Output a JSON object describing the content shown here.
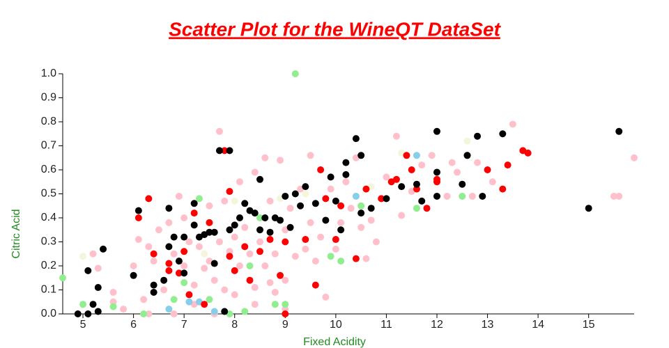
{
  "chart_data": {
    "type": "scatter",
    "title": "Scatter Plot for the WineQT DataSet",
    "x_label": "Fixed Acidity",
    "y_label": "Citric Acid",
    "xlim": [
      4.6,
      15.9
    ],
    "xticks": [
      5,
      6,
      7,
      8,
      9,
      10,
      11,
      12,
      13,
      14,
      15
    ],
    "ylim": [
      0,
      1
    ],
    "yticks": [
      {
        "value": 0,
        "label": "0.0"
      },
      0.1,
      0.2,
      0.3,
      0.4,
      0.5,
      0.6,
      0.7,
      0.8,
      0.9,
      {
        "value": 1,
        "label": "1.0"
      }
    ],
    "grid": false,
    "series": [
      {
        "color": "#ffc0cb",
        "x": [
          5.2,
          5.3,
          5.6,
          5.6,
          5.8,
          6.0,
          6.1,
          6.2,
          6.3,
          6.4,
          6.5,
          6.6,
          6.7,
          6.8,
          6.9,
          7.0,
          7.0,
          7.1,
          7.2,
          7.3,
          7.4,
          7.5,
          7.5,
          7.6,
          7.7,
          7.7,
          7.8,
          7.8,
          7.9,
          8.0,
          8.0,
          8.1,
          8.1,
          8.2,
          8.3,
          8.4,
          8.4,
          8.5,
          8.6,
          8.6,
          8.7,
          8.8,
          8.8,
          8.9,
          9.0,
          9.0,
          9.1,
          9.2,
          9.3,
          9.4,
          9.5,
          9.5,
          9.6,
          9.7,
          9.8,
          9.9,
          10.0,
          10.1,
          10.2,
          10.3,
          10.4,
          10.5,
          10.6,
          10.7,
          10.8,
          10.9,
          11.0,
          11.2,
          11.3,
          11.5,
          11.7,
          11.9,
          12.2,
          12.3,
          12.4,
          12.7,
          12.8,
          13.1,
          13.5,
          13.7,
          15.5,
          15.6,
          15.9,
          6.3,
          6.8,
          7.6,
          8.4,
          9.0,
          7.2,
          8.7
        ],
        "y": [
          0.25,
          0.19,
          0.09,
          0.05,
          0.02,
          0.2,
          0.31,
          0.06,
          0.28,
          0.22,
          0.35,
          0.1,
          0.38,
          0.25,
          0.49,
          0.4,
          0.2,
          0.3,
          0.12,
          0.28,
          0.19,
          0.45,
          0.22,
          0.14,
          0.76,
          0.3,
          0.47,
          0.1,
          0.26,
          0.32,
          0.08,
          0.55,
          0.2,
          0.36,
          0.25,
          0.59,
          0.11,
          0.3,
          0.65,
          0.2,
          0.47,
          0.25,
          0.09,
          0.64,
          0.35,
          0.14,
          0.44,
          0.24,
          0.52,
          0.27,
          0.66,
          0.38,
          0.22,
          0.32,
          0.07,
          0.52,
          0.27,
          0.38,
          0.55,
          0.44,
          0.65,
          0.36,
          0.23,
          0.39,
          0.3,
          0.48,
          0.57,
          0.74,
          0.41,
          0.51,
          0.62,
          0.66,
          0.49,
          0.63,
          0.59,
          0.49,
          0.63,
          0.55,
          0.79,
          0.68,
          0.49,
          0.49,
          0.65,
          0.0,
          0.0,
          0.0,
          0.04,
          0.02,
          0.04,
          0.13
        ]
      },
      {
        "color": "#90ee90",
        "x": [
          4.6,
          5.0,
          5.6,
          6.2,
          6.8,
          7.3,
          7.5,
          7.9,
          8.2,
          8.3,
          8.5,
          8.8,
          9.0,
          9.2,
          9.9,
          10.1,
          10.5,
          11.6,
          12.5,
          7.0
        ],
        "y": [
          0.15,
          0.04,
          0.03,
          0,
          0.06,
          0.48,
          0.06,
          0,
          0.01,
          0.2,
          0.4,
          0.04,
          0.04,
          1.0,
          0.24,
          0.22,
          0.45,
          0.44,
          0.49,
          0.13
        ]
      },
      {
        "color": "#f5f5dc",
        "x": [
          5.0,
          7.4,
          8.0,
          9.4,
          10.7,
          11.3,
          12.6,
          8.9
        ],
        "y": [
          0.24,
          0.25,
          0.47,
          0.5,
          0.53,
          0.67,
          0.72,
          0.48
        ]
      },
      {
        "color": "#87ceeb",
        "x": [
          6.7,
          7.1,
          7.3,
          7.6,
          10.4,
          11.6
        ],
        "y": [
          0.02,
          0.05,
          0.05,
          0.01,
          0.49,
          0.66
        ]
      },
      {
        "color": "#ff0000",
        "x": [
          6.1,
          6.3,
          6.4,
          6.7,
          6.7,
          6.9,
          7.0,
          7.1,
          7.2,
          7.4,
          7.5,
          7.8,
          7.9,
          7.9,
          8.0,
          8.2,
          8.3,
          8.5,
          8.7,
          8.9,
          9.0,
          9.0,
          9.4,
          9.6,
          9.7,
          9.8,
          10.0,
          10.1,
          10.4,
          10.6,
          10.9,
          11.1,
          11.2,
          11.4,
          11.5,
          11.6,
          11.8,
          12.0,
          12.0,
          12.6,
          13.0,
          13.3,
          13.4,
          13.7,
          13.8
        ],
        "y": [
          0.4,
          0.48,
          0.25,
          0.21,
          0.18,
          0.17,
          0.26,
          0.08,
          0.42,
          0.04,
          0.38,
          0.68,
          0.51,
          0.24,
          0.18,
          0.28,
          0.14,
          0.26,
          0.31,
          0.16,
          0.0,
          0.3,
          0.31,
          0.12,
          0.6,
          0.48,
          0.31,
          0.45,
          0.23,
          0.52,
          0.48,
          0.55,
          0.56,
          0.66,
          0.6,
          0.52,
          0.44,
          0.55,
          0.56,
          0.66,
          0.6,
          0.52,
          0.62,
          0.68,
          0.67
        ]
      },
      {
        "color": "#000000",
        "x": [
          4.9,
          5.1,
          5.1,
          5.2,
          5.3,
          5.3,
          5.4,
          6.1,
          6.0,
          6.4,
          6.4,
          6.6,
          6.7,
          6.7,
          6.8,
          6.9,
          7.0,
          7.0,
          7.2,
          7.2,
          7.3,
          7.4,
          7.5,
          7.6,
          7.6,
          7.7,
          7.9,
          7.9,
          7.8,
          8.0,
          8.1,
          8.2,
          8.3,
          8.4,
          8.5,
          8.5,
          8.6,
          8.7,
          8.8,
          8.9,
          9.0,
          9.1,
          9.2,
          9.3,
          9.4,
          9.6,
          9.8,
          9.9,
          10.0,
          10.1,
          10.2,
          10.2,
          10.4,
          10.5,
          10.5,
          10.7,
          11.0,
          11.3,
          11.6,
          11.7,
          12.0,
          12.0,
          12.0,
          12.5,
          12.6,
          12.8,
          12.9,
          13.3,
          15.0,
          15.6
        ],
        "y": [
          0,
          0,
          0.18,
          0.04,
          0.11,
          0.01,
          0.27,
          0.43,
          0.16,
          0.12,
          0.09,
          0.14,
          0.44,
          0.28,
          0.32,
          0.22,
          0.32,
          0.17,
          0.46,
          0.37,
          0.32,
          0.33,
          0.34,
          0.34,
          0.21,
          0.68,
          0.68,
          0.35,
          0.01,
          0.37,
          0.4,
          0.46,
          0.43,
          0.42,
          0.56,
          0.35,
          0.4,
          0.34,
          0.4,
          0.39,
          0.49,
          0.36,
          0.5,
          0.45,
          0.53,
          0.46,
          0.39,
          0.57,
          0.47,
          0.35,
          0.63,
          0.58,
          0.73,
          0.66,
          0.42,
          0.44,
          0.48,
          0.53,
          0.54,
          0.47,
          0.76,
          0.59,
          0.49,
          0.54,
          0.66,
          0.74,
          0.49,
          0.75,
          0.44,
          0.76
        ]
      }
    ]
  }
}
